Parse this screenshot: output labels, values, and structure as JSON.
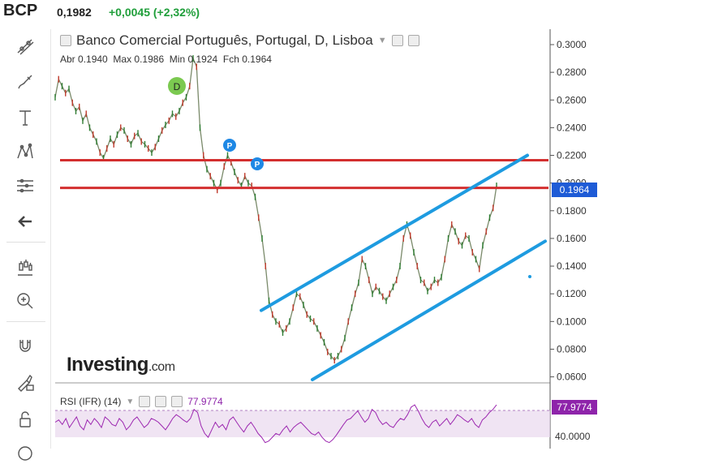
{
  "header": {
    "ticker": "BCP",
    "price": "0,1982",
    "change": "+0,0045 (+2,32%)",
    "change_color": "#1f9e3a"
  },
  "toolbar": {
    "items": [
      "trend-line-icon",
      "brush-icon",
      "text-icon",
      "pattern-icon",
      "fib-icon",
      "back-arrow-icon",
      "candles-icon",
      "zoom-icon",
      "magnet-icon",
      "lock-draw-icon",
      "unlock-icon"
    ]
  },
  "main_chart": {
    "title": "Banco Comercial Português, Portugal, D, Lisboa",
    "ohlc": {
      "open_label": "Abr",
      "open": "0.1940",
      "high_label": "Max",
      "high": "0.1986",
      "low_label": "Min",
      "low": "0.1924",
      "close_label": "Fch",
      "close": "0.1964"
    },
    "last_price_label": "0.1964",
    "markers": [
      "D",
      "P",
      "P"
    ],
    "logo_main": "Investing",
    "logo_suffix": ".com"
  },
  "rsi": {
    "label": "RSI (IFR) (14)",
    "value": "77.9774",
    "axis_label": "40.0000",
    "line_color": "#9c27b0"
  },
  "chart_data": {
    "type": "line",
    "title": "Banco Comercial Português, Portugal, D, Lisboa",
    "ylabel": "",
    "xlabel": "",
    "ylim": [
      0.058,
      0.3
    ],
    "y_ticks": [
      "0.3000",
      "0.2800",
      "0.2600",
      "0.2400",
      "0.2200",
      "0.2000",
      "0.1800",
      "0.1600",
      "0.1400",
      "0.1200",
      "0.1000",
      "0.0800",
      "0.0600"
    ],
    "series": [
      {
        "name": "",
        "values": [
          0.262,
          0.275,
          0.27,
          0.265,
          0.268,
          0.258,
          0.252,
          0.255,
          0.245,
          0.25,
          0.24,
          0.235,
          0.23,
          0.222,
          0.218,
          0.225,
          0.232,
          0.228,
          0.235,
          0.24,
          0.238,
          0.232,
          0.228,
          0.234,
          0.236,
          0.23,
          0.228,
          0.225,
          0.222,
          0.226,
          0.232,
          0.238,
          0.242,
          0.245,
          0.25,
          0.248,
          0.252,
          0.258,
          0.262,
          0.27,
          0.29,
          0.284,
          0.24,
          0.22,
          0.21,
          0.205,
          0.2,
          0.195,
          0.2,
          0.212,
          0.22,
          0.215,
          0.208,
          0.202,
          0.198,
          0.205,
          0.2,
          0.198,
          0.19,
          0.175,
          0.16,
          0.14,
          0.115,
          0.105,
          0.1,
          0.098,
          0.092,
          0.095,
          0.1,
          0.11,
          0.12,
          0.118,
          0.112,
          0.105,
          0.102,
          0.1,
          0.095,
          0.09,
          0.085,
          0.078,
          0.075,
          0.072,
          0.075,
          0.08,
          0.088,
          0.1,
          0.11,
          0.12,
          0.128,
          0.145,
          0.14,
          0.13,
          0.12,
          0.125,
          0.122,
          0.118,
          0.115,
          0.12,
          0.125,
          0.13,
          0.14,
          0.16,
          0.17,
          0.162,
          0.15,
          0.14,
          0.13,
          0.128,
          0.122,
          0.125,
          0.13,
          0.128,
          0.132,
          0.145,
          0.16,
          0.17,
          0.165,
          0.158,
          0.155,
          0.162,
          0.16,
          0.15,
          0.145,
          0.138,
          0.155,
          0.165,
          0.175,
          0.182,
          0.198
        ]
      }
    ],
    "horizontal_lines": [
      0.2165,
      0.1965
    ],
    "horizontal_line_color": "#d32f2f",
    "channel_color": "#1e9be0",
    "channel_upper": [
      [
        0,
        0.108
      ],
      [
        1,
        0.22
      ]
    ],
    "channel_lower": [
      [
        0,
        0.058
      ],
      [
        1,
        0.158
      ]
    ],
    "rsi_values": [
      55,
      58,
      52,
      60,
      48,
      55,
      62,
      50,
      45,
      58,
      52,
      60,
      55,
      48,
      62,
      58,
      52,
      50,
      60,
      55,
      45,
      50,
      58,
      62,
      55,
      48,
      52,
      60,
      58,
      55,
      50,
      45,
      52,
      60,
      65,
      62,
      58,
      55,
      60,
      72,
      68,
      50,
      40,
      35,
      45,
      55,
      48,
      52,
      45,
      58,
      62,
      55,
      48,
      42,
      50,
      55,
      48,
      40,
      35,
      28,
      30,
      35,
      40,
      38,
      45,
      50,
      42,
      48,
      52,
      55,
      50,
      45,
      40,
      38,
      42,
      35,
      30,
      28,
      32,
      38,
      45,
      52,
      58,
      60,
      65,
      70,
      62,
      55,
      60,
      72,
      68,
      58,
      52,
      55,
      50,
      48,
      55,
      60,
      58,
      65,
      75,
      78,
      70,
      60,
      52,
      48,
      55,
      58,
      50,
      55,
      60,
      52,
      58,
      65,
      62,
      58,
      55,
      60,
      52,
      48,
      58,
      62,
      68,
      72,
      78
    ]
  }
}
